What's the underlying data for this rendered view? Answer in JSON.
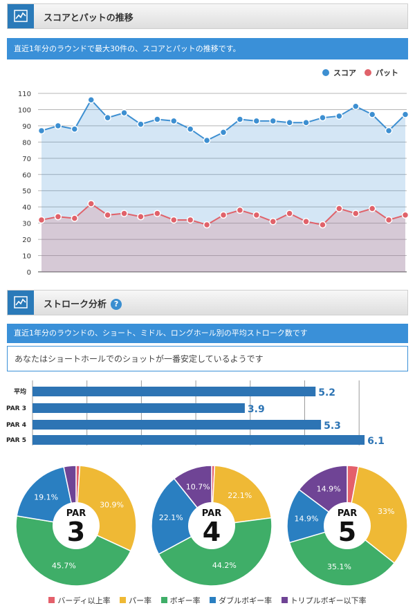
{
  "section1": {
    "title": "スコアとパットの推移",
    "description": "直近1年分のラウンドで最大30件の、スコアとパットの推移です。"
  },
  "section2": {
    "title": "ストローク分析",
    "help": "?",
    "description": "直近1年分のラウンドの、ショート、ミドル、ロングホール別の平均ストローク数です",
    "note": "あなたはショートホールでのショットが一番安定しているようです"
  },
  "colors": {
    "score": "#3d8fd1",
    "putt": "#e0626a",
    "birdie": "#e4606b",
    "par": "#efb935",
    "bogey": "#3fae68",
    "double": "#2a7fc1",
    "triple": "#6f4495",
    "bar": "#2d74b4",
    "header_icon": "#2a7ab9"
  },
  "icons": {
    "header": "line-chart-icon",
    "help": "question-circle-icon"
  },
  "chart_data": [
    {
      "type": "line",
      "legend": [
        "スコア",
        "パット"
      ],
      "legend_position": "top-right",
      "ylim": [
        0,
        110
      ],
      "yticks": [
        0,
        10,
        20,
        30,
        40,
        50,
        60,
        70,
        80,
        90,
        100,
        110
      ],
      "grid": true,
      "series": [
        {
          "name": "スコア",
          "values": [
            87,
            90,
            88,
            106,
            95,
            98,
            91,
            94,
            93,
            88,
            81,
            86,
            94,
            93,
            93,
            92,
            92,
            95,
            96,
            102,
            97,
            87,
            97
          ]
        },
        {
          "name": "パット",
          "values": [
            32,
            34,
            33,
            42,
            35,
            36,
            34,
            36,
            32,
            32,
            29,
            35,
            38,
            35,
            31,
            36,
            31,
            29,
            39,
            36,
            39,
            32,
            35
          ]
        }
      ]
    },
    {
      "type": "bar",
      "orientation": "horizontal",
      "categories": [
        "平均",
        "PAR 3",
        "PAR 4",
        "PAR 5"
      ],
      "values": [
        5.2,
        3.9,
        5.3,
        6.1
      ],
      "labels": [
        "5.2",
        "3.9",
        "5.3",
        "6.1"
      ],
      "grid": true
    },
    {
      "type": "pie",
      "style": "donut",
      "charts": [
        {
          "center_top": "PAR",
          "center_big": "3",
          "slices": [
            {
              "category": "バーディ以上率",
              "value": 1.0,
              "label": ""
            },
            {
              "category": "パー率",
              "value": 30.9,
              "label": "30.9%"
            },
            {
              "category": "ボギー率",
              "value": 45.7,
              "label": "45.7%"
            },
            {
              "category": "ダブルボギー率",
              "value": 19.1,
              "label": "19.1%"
            },
            {
              "category": "トリプルボギー以下率",
              "value": 3.3,
              "label": ""
            }
          ]
        },
        {
          "center_top": "PAR",
          "center_big": "4",
          "slices": [
            {
              "category": "バーディ以上率",
              "value": 0.8,
              "label": ""
            },
            {
              "category": "パー率",
              "value": 22.1,
              "label": "22.1%"
            },
            {
              "category": "ボギー率",
              "value": 44.2,
              "label": "44.2%"
            },
            {
              "category": "ダブルボギー率",
              "value": 22.1,
              "label": "22.1%"
            },
            {
              "category": "トリプルボギー以下率",
              "value": 10.7,
              "label": "10.7%"
            }
          ]
        },
        {
          "center_top": "PAR",
          "center_big": "5",
          "slices": [
            {
              "category": "バーディ以上率",
              "value": 3.0,
              "label": ""
            },
            {
              "category": "パー率",
              "value": 33.0,
              "label": "33%"
            },
            {
              "category": "ボギー率",
              "value": 35.1,
              "label": "35.1%"
            },
            {
              "category": "ダブルボギー率",
              "value": 14.9,
              "label": "14.9%"
            },
            {
              "category": "トリプルボギー以下率",
              "value": 14.9,
              "label": "14.9%"
            }
          ]
        }
      ],
      "legend": [
        "バーディ以上率",
        "パー率",
        "ボギー率",
        "ダブルボギー率",
        "トリプルボギー以下率"
      ],
      "legend_position": "bottom"
    }
  ]
}
